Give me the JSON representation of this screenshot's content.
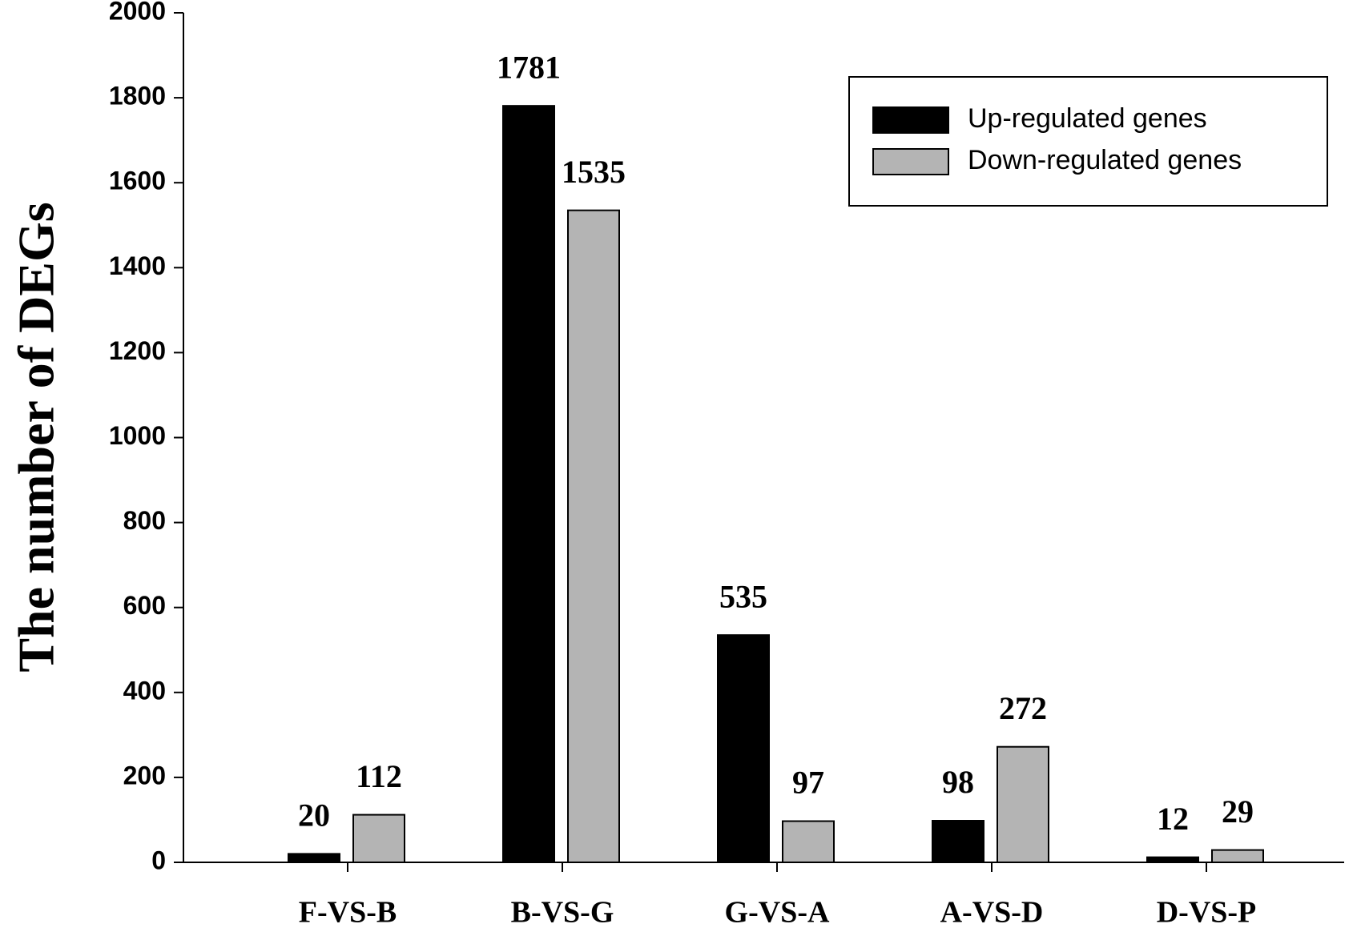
{
  "chart_data": {
    "type": "bar",
    "y_label": "The number of DEGs",
    "categories": [
      "F-VS-B",
      "B-VS-G",
      "G-VS-A",
      "A-VS-D",
      "D-VS-P"
    ],
    "series": [
      {
        "name": "Up-regulated genes",
        "color": "#000000",
        "values": [
          20,
          1781,
          535,
          98,
          12
        ]
      },
      {
        "name": "Down-regulated genes",
        "color": "#b4b4b4",
        "values": [
          112,
          1535,
          97,
          272,
          29
        ]
      }
    ],
    "ylim": [
      0,
      2000
    ],
    "yticks": [
      0,
      200,
      400,
      600,
      800,
      1000,
      1200,
      1400,
      1600,
      1800,
      2000
    ],
    "legend": "upper right"
  }
}
